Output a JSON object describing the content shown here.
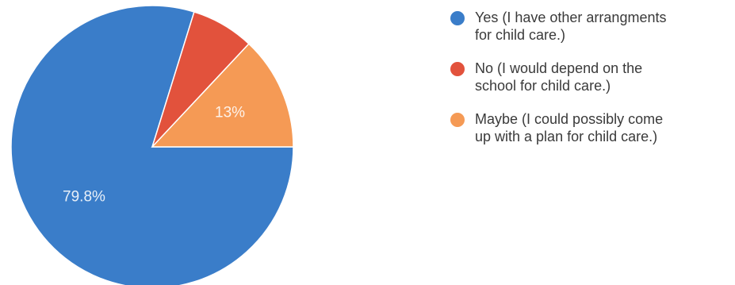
{
  "chart_data": {
    "type": "pie",
    "title": "",
    "slices": [
      {
        "label": "Yes (I have other arrangments for child care.)",
        "label_lines": [
          "Yes (I have other arrangments",
          "for child care.)"
        ],
        "value": 79.8,
        "display": "79.8%",
        "color": "#3a7dc9"
      },
      {
        "label": "No (I would depend on the school for child care.)",
        "label_lines": [
          "No (I would depend on the",
          "school for child care.)"
        ],
        "value": 7.2,
        "display": "",
        "color": "#e2523c"
      },
      {
        "label": "Maybe (I could possibly come up with a plan for child care.)",
        "label_lines": [
          "Maybe (I could possibly come",
          "up with a plan for child care.)"
        ],
        "value": 13,
        "display": "13%",
        "color": "#f59a55"
      }
    ],
    "legend_position": "right"
  }
}
